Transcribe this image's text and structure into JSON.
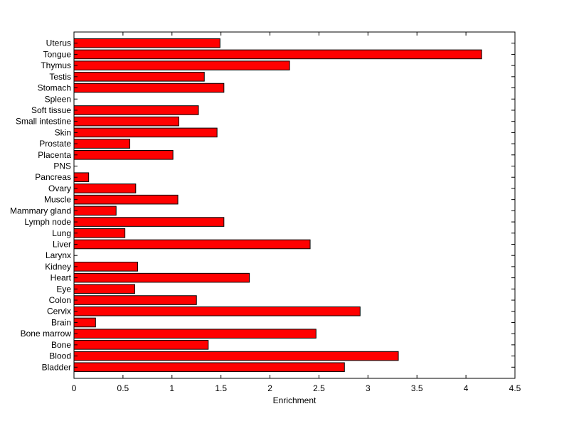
{
  "chart_data": {
    "type": "bar",
    "orientation": "horizontal",
    "title": "",
    "xlabel": "Enrichment",
    "ylabel": "",
    "xlim": [
      0,
      4.5
    ],
    "xticks": [
      0,
      0.5,
      1,
      1.5,
      2,
      2.5,
      3,
      3.5,
      4,
      4.5
    ],
    "xtick_labels": [
      "0",
      "0.5",
      "1",
      "1.5",
      "2",
      "2.5",
      "3",
      "3.5",
      "4",
      "4.5"
    ],
    "grid": false,
    "bar_color": "#ff0000",
    "edge_color": "#000000",
    "categories": [
      "Bladder",
      "Blood",
      "Bone",
      "Bone marrow",
      "Brain",
      "Cervix",
      "Colon",
      "Eye",
      "Heart",
      "Kidney",
      "Larynx",
      "Liver",
      "Lung",
      "Lymph node",
      "Mammary gland",
      "Muscle",
      "Ovary",
      "Pancreas",
      "PNS",
      "Placenta",
      "Prostate",
      "Skin",
      "Small intestine",
      "Soft tissue",
      "Spleen",
      "Stomach",
      "Testis",
      "Thymus",
      "Tongue",
      "Uterus"
    ],
    "values": [
      2.76,
      3.31,
      1.37,
      2.47,
      0.22,
      2.92,
      1.25,
      0.62,
      1.79,
      0.65,
      0,
      2.41,
      0.52,
      1.53,
      0.43,
      1.06,
      0.63,
      0.15,
      0,
      1.01,
      0.57,
      1.46,
      1.07,
      1.27,
      0,
      1.53,
      1.33,
      2.2,
      4.16,
      1.49
    ]
  }
}
